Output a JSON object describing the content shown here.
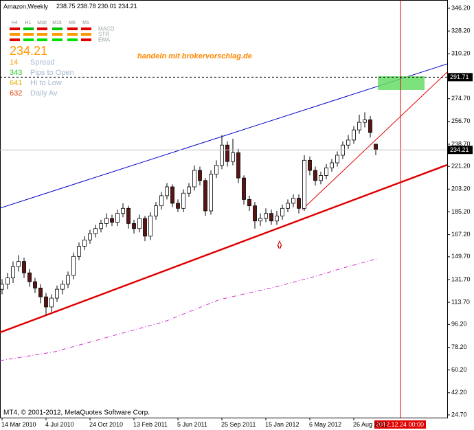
{
  "chart_data": {
    "type": "candlestick",
    "title": "Amazon,Weekly",
    "watermark": "handeln mit brokervorschlag.de",
    "copyright": "MT4, © 2001-2012, MetaQuotes Software Corp.",
    "cursor_label": "2012.12.24 00:00",
    "price_line": 291.71,
    "bull_color": "#ffffff",
    "bear_color": "#5a1414",
    "x": [
      0,
      2,
      4,
      6,
      8,
      10,
      12,
      14,
      16,
      18,
      20,
      22,
      24,
      26,
      28,
      30,
      32,
      34,
      36,
      38,
      40,
      42,
      44,
      46,
      48,
      50,
      52,
      54,
      56,
      58,
      60,
      62,
      64,
      66,
      68,
      70,
      72,
      74,
      76,
      78,
      80,
      82,
      84,
      86,
      88,
      90,
      92,
      94,
      96,
      98,
      100,
      102,
      104,
      106,
      108,
      110,
      112,
      114,
      116,
      118,
      120,
      122,
      124,
      126,
      128,
      130,
      132,
      134,
      136
    ],
    "open": [
      124,
      128,
      133,
      142,
      146,
      137,
      130,
      125,
      118,
      110,
      117,
      124,
      128,
      135,
      150,
      158,
      163,
      168,
      172,
      176,
      180,
      177,
      184,
      188,
      176,
      172,
      180,
      166,
      182,
      190,
      198,
      205,
      192,
      188,
      200,
      205,
      218,
      210,
      186,
      215,
      222,
      238,
      225,
      232,
      212,
      195,
      190,
      178,
      180,
      184,
      178,
      182,
      188,
      192,
      196,
      188,
      226,
      218,
      210,
      214,
      220,
      224,
      230,
      238,
      242,
      250,
      256,
      258,
      238.75
    ],
    "high": [
      132,
      137,
      146,
      151,
      149,
      140,
      133,
      128,
      121,
      120,
      127,
      131,
      138,
      153,
      161,
      166,
      171,
      175,
      179,
      184,
      183,
      187,
      192,
      190,
      179,
      183,
      182,
      185,
      193,
      201,
      208,
      207,
      195,
      203,
      208,
      222,
      221,
      212,
      218,
      226,
      246,
      241,
      243,
      235,
      214,
      198,
      193,
      184,
      188,
      187,
      186,
      191,
      195,
      199,
      199,
      230,
      229,
      221,
      217,
      223,
      227,
      233,
      241,
      246,
      253,
      262,
      264,
      261,
      238.78
    ],
    "low": [
      120,
      124,
      129,
      138,
      133,
      126,
      121,
      113,
      104,
      106,
      114,
      120,
      125,
      132,
      147,
      155,
      160,
      165,
      169,
      173,
      174,
      174,
      181,
      172,
      168,
      169,
      162,
      163,
      179,
      187,
      195,
      189,
      185,
      185,
      197,
      202,
      206,
      182,
      183,
      212,
      219,
      221,
      222,
      208,
      191,
      186,
      172,
      174,
      177,
      175,
      175,
      179,
      185,
      189,
      184,
      186,
      214,
      206,
      207,
      211,
      217,
      221,
      227,
      235,
      239,
      247,
      252,
      244,
      230.01
    ],
    "close": [
      128,
      133,
      142,
      146,
      137,
      130,
      125,
      118,
      110,
      117,
      124,
      128,
      135,
      150,
      158,
      163,
      168,
      172,
      176,
      180,
      177,
      184,
      188,
      176,
      172,
      180,
      166,
      182,
      190,
      198,
      205,
      192,
      188,
      200,
      205,
      218,
      210,
      186,
      215,
      222,
      238,
      225,
      232,
      212,
      195,
      190,
      178,
      180,
      184,
      178,
      182,
      188,
      192,
      196,
      188,
      226,
      218,
      210,
      214,
      220,
      224,
      230,
      238,
      242,
      250,
      256,
      258,
      248,
      234.21
    ],
    "xlim": [
      0,
      162
    ],
    "xticks": [
      {
        "value": 0,
        "label": "14 Mar 2010"
      },
      {
        "value": 16,
        "label": "4 Jul 2010"
      },
      {
        "value": 32,
        "label": "24 Oct 2010"
      },
      {
        "value": 48,
        "label": "13 Feb 2011"
      },
      {
        "value": 64,
        "label": "5 Jun 2011"
      },
      {
        "value": 80,
        "label": "25 Sep 2011"
      },
      {
        "value": 96,
        "label": "15 Jan 2012"
      },
      {
        "value": 112,
        "label": "6 May 2012"
      },
      {
        "value": 128,
        "label": "26 Aug 2012"
      }
    ],
    "ylim": [
      24.7,
      346.2
    ],
    "yticks": [
      {
        "value": 346.2,
        "label": "346.20"
      },
      {
        "value": 328.2,
        "label": "328.20"
      },
      {
        "value": 310.2,
        "label": "310.20"
      },
      {
        "value": 292.2,
        "label": "292.20"
      },
      {
        "value": 274.7,
        "label": "274.70"
      },
      {
        "value": 256.7,
        "label": "256.70"
      },
      {
        "value": 238.7,
        "label": "238.70"
      },
      {
        "value": 221.2,
        "label": "221.20"
      },
      {
        "value": 203.2,
        "label": "203.20"
      },
      {
        "value": 185.2,
        "label": "185.20"
      },
      {
        "value": 167.2,
        "label": "167.20"
      },
      {
        "value": 149.7,
        "label": "149.70"
      },
      {
        "value": 131.7,
        "label": "131.70"
      },
      {
        "value": 113.7,
        "label": "113.70"
      },
      {
        "value": 96.2,
        "label": "96.20"
      },
      {
        "value": 78.2,
        "label": "78.20"
      },
      {
        "value": 60.2,
        "label": "60.20"
      },
      {
        "value": 42.2,
        "label": "42.20"
      },
      {
        "value": 24.7,
        "label": "24.70"
      }
    ],
    "panel": {
      "timeframes": [
        "H4",
        "H1",
        "M30",
        "M15",
        "M5",
        "M1"
      ],
      "rows": [
        {
          "name": "MACD",
          "colors": [
            "#e00000",
            "#00c000",
            "#e00000",
            "#00c000",
            "#e00000",
            "#e00000"
          ]
        },
        {
          "name": "STR",
          "colors": [
            "#ff9900",
            "#ff9900",
            "#ff9900",
            "#ff9900",
            "#ff9900",
            "#ff9900"
          ]
        },
        {
          "name": "EMA",
          "colors": [
            "#e00000",
            "#00e000",
            "#00e000",
            "#00e000",
            "#00e000",
            "#e00000"
          ]
        }
      ]
    },
    "info": [
      {
        "value": 14,
        "label": "Spread",
        "color": "#ff9900"
      },
      {
        "value": 343,
        "label": "Pips to Open",
        "color": "#33cc33"
      },
      {
        "value": 641,
        "label": "Hi to Low",
        "color": "#e8b000"
      },
      {
        "value": 632,
        "label": "Daily Av",
        "color": "#e04010"
      }
    ]
  }
}
